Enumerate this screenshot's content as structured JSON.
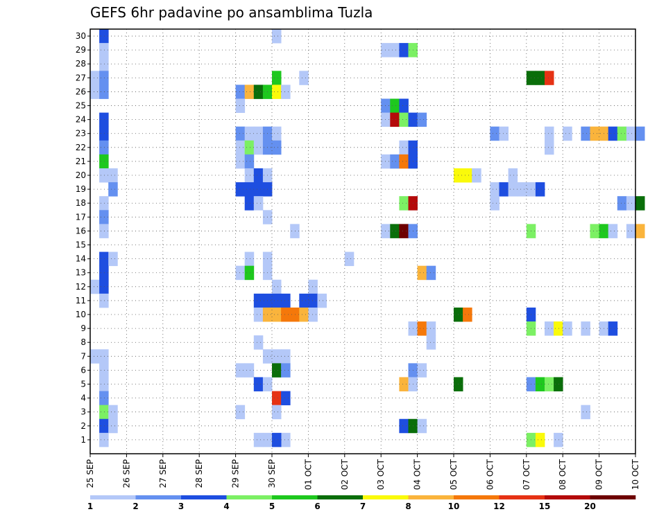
{
  "chart_data": {
    "type": "heatmap",
    "title": "GEFS 6hr padavine po ansamblima Tuzla",
    "xlabel": "",
    "ylabel": "",
    "x_tick_labels": [
      "25 SEP",
      "26 SEP",
      "27 SEP",
      "28 SEP",
      "29 SEP",
      "30 SEP",
      "01 OCT",
      "02 OCT",
      "03 OCT",
      "04 OCT",
      "05 OCT",
      "06 OCT",
      "07 OCT",
      "08 OCT",
      "09 OCT",
      "10 OCT"
    ],
    "y_tick_labels": [
      "1",
      "2",
      "3",
      "4",
      "5",
      "6",
      "7",
      "8",
      "9",
      "10",
      "11",
      "12",
      "13",
      "14",
      "15",
      "16",
      "17",
      "18",
      "19",
      "20",
      "21",
      "22",
      "23",
      "24",
      "25",
      "26",
      "27",
      "28",
      "29",
      "30"
    ],
    "grid": true,
    "colorbar": {
      "bounds": [
        1,
        2,
        3,
        4,
        5,
        6,
        7,
        8,
        10,
        12,
        15,
        20
      ],
      "labels": [
        "1",
        "2",
        "3",
        "4",
        "5",
        "6",
        "7",
        "8",
        "10",
        "12",
        "15",
        "20"
      ],
      "colors": [
        "#b4c8f8",
        "#6490f0",
        "#1e4ee0",
        "#7cf064",
        "#1ec81e",
        "#0a6e0a",
        "#fafa0a",
        "#fab43c",
        "#f5780a",
        "#e63214",
        "#b40a0a",
        "#6e0000"
      ]
    },
    "cells": [
      [
        0,
        1,
        30,
        3
      ],
      [
        0,
        1,
        29,
        1
      ],
      [
        0,
        1,
        28,
        1
      ],
      [
        0,
        0,
        27,
        1
      ],
      [
        0,
        1,
        27,
        2
      ],
      [
        0,
        0,
        26,
        1
      ],
      [
        0,
        1,
        26,
        2
      ],
      [
        0,
        1,
        24,
        3
      ],
      [
        0,
        1,
        23,
        3
      ],
      [
        0,
        1,
        22,
        2
      ],
      [
        0,
        1,
        21,
        5
      ],
      [
        0,
        1,
        20,
        1
      ],
      [
        0,
        2,
        20,
        1
      ],
      [
        0,
        2,
        19,
        2
      ],
      [
        0,
        1,
        18,
        1
      ],
      [
        0,
        1,
        17,
        2
      ],
      [
        0,
        1,
        16,
        1
      ],
      [
        0,
        1,
        14,
        3
      ],
      [
        0,
        2,
        14,
        1
      ],
      [
        0,
        1,
        13,
        3
      ],
      [
        0,
        0,
        12,
        1
      ],
      [
        0,
        1,
        12,
        3
      ],
      [
        0,
        1,
        11,
        1
      ],
      [
        0,
        0,
        7,
        1
      ],
      [
        0,
        1,
        7,
        1
      ],
      [
        0,
        1,
        6,
        1
      ],
      [
        0,
        1,
        5,
        1
      ],
      [
        0,
        1,
        4,
        2
      ],
      [
        0,
        1,
        3,
        4
      ],
      [
        0,
        2,
        3,
        1
      ],
      [
        0,
        1,
        2,
        3
      ],
      [
        0,
        2,
        2,
        1
      ],
      [
        0,
        1,
        1,
        1
      ],
      [
        4,
        0,
        26,
        2
      ],
      [
        4,
        1,
        26,
        8
      ],
      [
        4,
        2,
        26,
        6
      ],
      [
        4,
        3,
        26,
        5
      ],
      [
        4,
        0,
        25,
        1
      ],
      [
        4,
        0,
        23,
        2
      ],
      [
        4,
        1,
        23,
        1
      ],
      [
        4,
        2,
        23,
        1
      ],
      [
        4,
        3,
        23,
        2
      ],
      [
        4,
        0,
        22,
        1
      ],
      [
        4,
        1,
        22,
        4
      ],
      [
        4,
        2,
        22,
        1
      ],
      [
        4,
        3,
        22,
        2
      ],
      [
        4,
        0,
        21,
        1
      ],
      [
        4,
        1,
        21,
        2
      ],
      [
        4,
        1,
        20,
        1
      ],
      [
        4,
        2,
        20,
        3
      ],
      [
        4,
        3,
        20,
        1
      ],
      [
        4,
        0,
        19,
        3
      ],
      [
        4,
        1,
        19,
        3
      ],
      [
        4,
        2,
        19,
        3
      ],
      [
        4,
        3,
        19,
        3
      ],
      [
        4,
        1,
        18,
        3
      ],
      [
        4,
        2,
        18,
        1
      ],
      [
        4,
        3,
        17,
        1
      ],
      [
        4,
        1,
        14,
        1
      ],
      [
        4,
        3,
        14,
        1
      ],
      [
        4,
        0,
        13,
        1
      ],
      [
        4,
        1,
        13,
        5
      ],
      [
        4,
        3,
        13,
        1
      ],
      [
        4,
        2,
        11,
        3
      ],
      [
        4,
        3,
        11,
        3
      ],
      [
        4,
        2,
        10,
        1
      ],
      [
        4,
        3,
        10,
        8
      ],
      [
        4,
        2,
        8,
        1
      ],
      [
        4,
        3,
        7,
        1
      ],
      [
        4,
        0,
        6,
        1
      ],
      [
        4,
        1,
        6,
        1
      ],
      [
        4,
        2,
        5,
        3
      ],
      [
        4,
        3,
        5,
        1
      ],
      [
        4,
        0,
        3,
        1
      ],
      [
        4,
        2,
        1,
        1
      ],
      [
        4,
        3,
        1,
        1
      ],
      [
        5,
        0,
        30,
        1
      ],
      [
        5,
        3,
        27,
        1
      ],
      [
        5,
        0,
        27,
        5
      ],
      [
        5,
        0,
        26,
        7
      ],
      [
        5,
        1,
        26,
        1
      ],
      [
        5,
        0,
        23,
        1
      ],
      [
        5,
        0,
        22,
        2
      ],
      [
        5,
        2,
        16,
        1
      ],
      [
        5,
        0,
        12,
        1
      ],
      [
        5,
        0,
        11,
        3
      ],
      [
        5,
        1,
        11,
        3
      ],
      [
        5,
        3,
        11,
        3
      ],
      [
        5,
        0,
        10,
        8
      ],
      [
        5,
        1,
        10,
        9
      ],
      [
        5,
        2,
        10,
        9
      ],
      [
        5,
        3,
        10,
        8
      ],
      [
        5,
        0,
        7,
        1
      ],
      [
        5,
        1,
        7,
        1
      ],
      [
        5,
        0,
        6,
        6
      ],
      [
        5,
        1,
        6,
        2
      ],
      [
        5,
        0,
        4,
        10
      ],
      [
        5,
        1,
        4,
        3
      ],
      [
        5,
        0,
        3,
        1
      ],
      [
        5,
        1,
        1,
        1
      ],
      [
        5,
        0,
        1,
        3
      ],
      [
        6,
        0,
        12,
        1
      ],
      [
        6,
        0,
        11,
        3
      ],
      [
        6,
        1,
        11,
        1
      ],
      [
        6,
        0,
        10,
        1
      ],
      [
        7,
        0,
        14,
        1
      ],
      [
        8,
        0,
        29,
        1
      ],
      [
        8,
        1,
        29,
        1
      ],
      [
        8,
        2,
        29,
        3
      ],
      [
        8,
        3,
        29,
        4
      ],
      [
        8,
        0,
        25,
        2
      ],
      [
        8,
        1,
        25,
        5
      ],
      [
        8,
        2,
        25,
        3
      ],
      [
        8,
        0,
        24,
        1
      ],
      [
        8,
        1,
        24,
        11
      ],
      [
        8,
        2,
        24,
        4
      ],
      [
        8,
        3,
        24,
        3
      ],
      [
        8,
        2,
        22,
        1
      ],
      [
        8,
        3,
        22,
        3
      ],
      [
        8,
        0,
        21,
        1
      ],
      [
        8,
        1,
        21,
        2
      ],
      [
        8,
        2,
        21,
        9
      ],
      [
        8,
        3,
        21,
        3
      ],
      [
        8,
        2,
        18,
        4
      ],
      [
        8,
        3,
        18,
        11
      ],
      [
        8,
        0,
        16,
        1
      ],
      [
        8,
        1,
        16,
        6
      ],
      [
        8,
        2,
        16,
        12
      ],
      [
        8,
        3,
        16,
        2
      ],
      [
        8,
        3,
        9,
        1
      ],
      [
        8,
        3,
        6,
        2
      ],
      [
        8,
        2,
        5,
        8
      ],
      [
        8,
        3,
        5,
        1
      ],
      [
        8,
        2,
        2,
        3
      ],
      [
        8,
        3,
        2,
        6
      ],
      [
        9,
        0,
        24,
        2
      ],
      [
        9,
        0,
        13,
        8
      ],
      [
        9,
        1,
        13,
        2
      ],
      [
        9,
        0,
        9,
        9
      ],
      [
        9,
        1,
        9,
        1
      ],
      [
        9,
        1,
        8,
        1
      ],
      [
        9,
        0,
        6,
        1
      ],
      [
        9,
        0,
        2,
        1
      ],
      [
        10,
        0,
        20,
        7
      ],
      [
        10,
        1,
        20,
        7
      ],
      [
        10,
        2,
        20,
        1
      ],
      [
        10,
        0,
        10,
        6
      ],
      [
        10,
        1,
        10,
        9
      ],
      [
        10,
        0,
        5,
        6
      ],
      [
        11,
        0,
        19,
        1
      ],
      [
        11,
        1,
        19,
        3
      ],
      [
        11,
        2,
        19,
        1
      ],
      [
        11,
        3,
        19,
        1
      ],
      [
        11,
        0,
        18,
        1
      ],
      [
        11,
        2,
        20,
        1
      ],
      [
        11,
        0,
        23,
        2
      ],
      [
        11,
        1,
        23,
        1
      ],
      [
        12,
        1,
        27,
        6
      ],
      [
        12,
        0,
        27,
        6
      ],
      [
        12,
        2,
        27,
        10
      ],
      [
        12,
        2,
        23,
        1
      ],
      [
        12,
        0,
        19,
        1
      ],
      [
        12,
        1,
        19,
        3
      ],
      [
        12,
        0,
        16,
        4
      ],
      [
        12,
        0,
        10,
        3
      ],
      [
        12,
        0,
        9,
        4
      ],
      [
        12,
        2,
        9,
        1
      ],
      [
        12,
        3,
        9,
        7
      ],
      [
        12,
        0,
        5,
        2
      ],
      [
        12,
        1,
        5,
        5
      ],
      [
        12,
        2,
        5,
        4
      ],
      [
        12,
        3,
        5,
        6
      ],
      [
        12,
        0,
        1,
        4
      ],
      [
        12,
        1,
        1,
        7
      ],
      [
        12,
        3,
        1,
        1
      ],
      [
        12,
        2,
        22,
        1
      ],
      [
        13,
        0,
        23,
        1
      ],
      [
        13,
        2,
        23,
        2
      ],
      [
        13,
        3,
        23,
        8
      ],
      [
        13,
        3,
        16,
        4
      ],
      [
        13,
        0,
        9,
        1
      ],
      [
        13,
        2,
        9,
        1
      ],
      [
        13,
        2,
        3,
        1
      ],
      [
        14,
        0,
        23,
        8
      ],
      [
        14,
        1,
        23,
        3
      ],
      [
        14,
        2,
        23,
        4
      ],
      [
        14,
        3,
        23,
        1
      ],
      [
        14,
        0,
        16,
        5
      ],
      [
        14,
        1,
        16,
        1
      ],
      [
        14,
        3,
        16,
        1
      ],
      [
        14,
        2,
        18,
        2
      ],
      [
        14,
        3,
        18,
        1
      ],
      [
        14,
        0,
        9,
        1
      ],
      [
        14,
        1,
        9,
        3
      ],
      [
        15,
        0,
        23,
        2
      ],
      [
        15,
        0,
        18,
        6
      ],
      [
        15,
        0,
        16,
        8
      ]
    ]
  }
}
